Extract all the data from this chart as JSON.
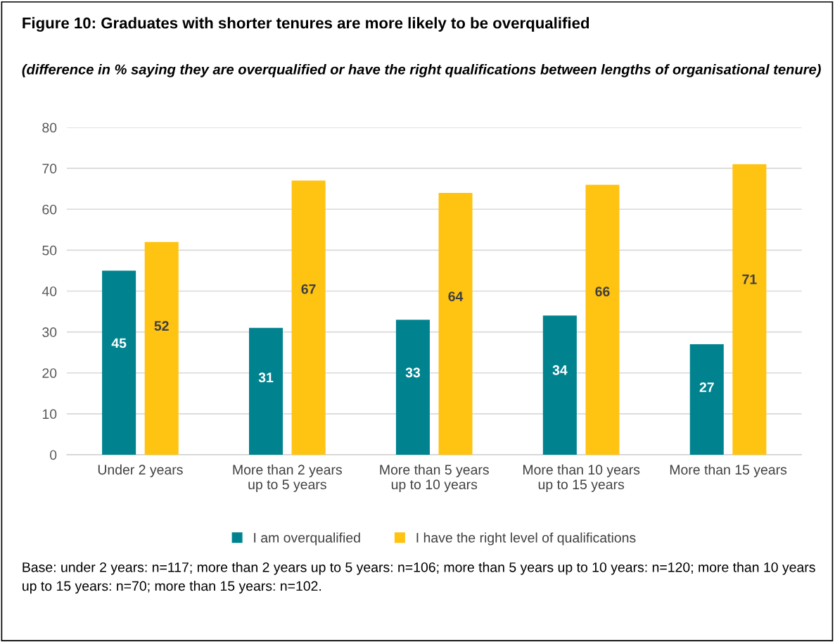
{
  "chart_data": {
    "type": "bar",
    "title": "Figure 10: Graduates with shorter tenures are more likely to be overqualified",
    "subtitle": "(difference in % saying they are overqualified or have the right qualifications between lengths of organisational tenure)",
    "categories": [
      "Under 2 years",
      "More than 2 years\nup to 5 years",
      "More than 5 years\nup to 10 years",
      "More than 10 years\nup to 15 years",
      "More than 15 years"
    ],
    "series": [
      {
        "name": "I am overqualified",
        "color": "#00838f",
        "values": [
          45,
          31,
          33,
          34,
          27
        ]
      },
      {
        "name": "I have the right level of qualifications",
        "color": "#ffc312",
        "values": [
          52,
          67,
          64,
          66,
          71
        ]
      }
    ],
    "ylim": [
      0,
      80
    ],
    "yticks": [
      0,
      10,
      20,
      30,
      40,
      50,
      60,
      70,
      80
    ],
    "grid": "y",
    "legend": "bottom",
    "data_labels": true,
    "annotations": [
      "Base: under 2 years: n=117; more than 2 years up to 5 years: n=106; more than 5 years up to 10 years: n=120; more than 10 years up to 15 years: n=70; more than 15 years: n=102."
    ]
  }
}
